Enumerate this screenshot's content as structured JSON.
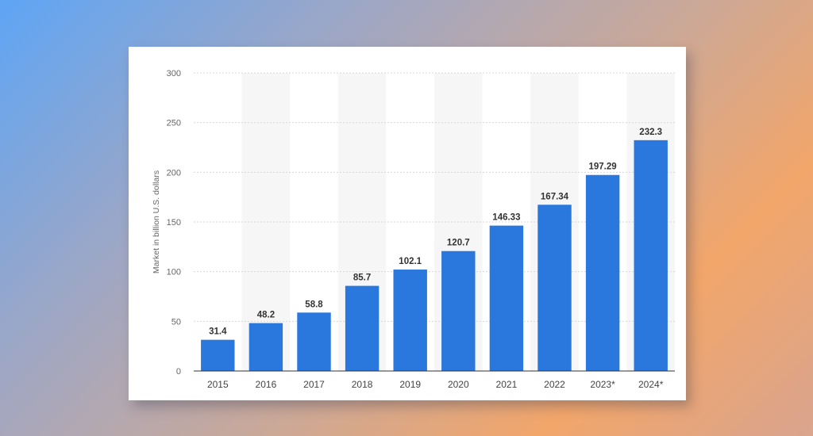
{
  "chart_data": {
    "type": "bar",
    "categories": [
      "2015",
      "2016",
      "2017",
      "2018",
      "2019",
      "2020",
      "2021",
      "2022",
      "2023*",
      "2024*"
    ],
    "values": [
      31.4,
      48.2,
      58.8,
      85.7,
      102.1,
      120.7,
      146.33,
      167.34,
      197.29,
      232.3
    ],
    "value_labels": [
      "31.4",
      "48.2",
      "58.8",
      "85.7",
      "102.1",
      "120.7",
      "146.33",
      "167.34",
      "197.29",
      "232.3"
    ],
    "ylabel": "Market in billion U.S. dollars",
    "ylim": [
      0,
      300
    ],
    "yticks": [
      0,
      50,
      100,
      150,
      200,
      250,
      300
    ],
    "ytick_labels": [
      "0",
      "50",
      "100",
      "150",
      "200",
      "250",
      "300"
    ],
    "bar_color": "#2a78dd",
    "alt_band_color": "#f6f6f6",
    "grid": true,
    "legend": false
  }
}
